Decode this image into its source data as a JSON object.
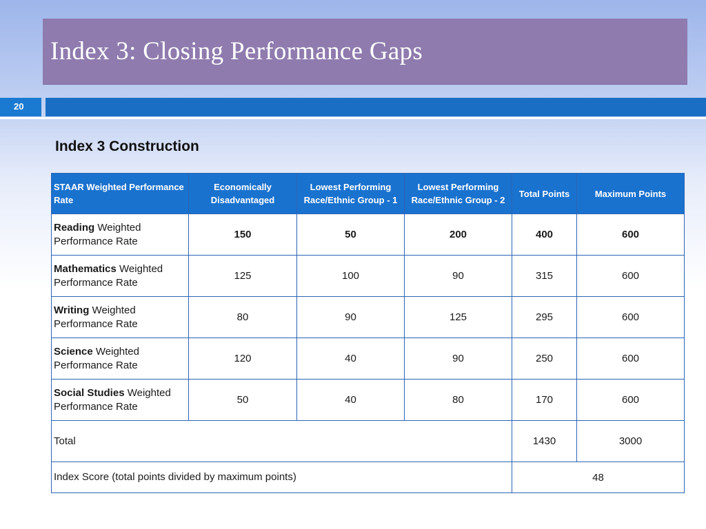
{
  "slide": {
    "title": "Index 3: Closing Performance Gaps",
    "number": "20",
    "subtitle": "Index 3 Construction"
  },
  "table": {
    "headers": {
      "col1": "STAAR Weighted Performance Rate",
      "col2": "Economically Disadvantaged",
      "col3": "Lowest Performing Race/Ethnic Group - 1",
      "col4": "Lowest Performing Race/Ethnic Group - 2",
      "col5": "Total Points",
      "col6": "Maximum Points"
    },
    "rows": [
      {
        "subject": "Reading",
        "suffix": " Weighted Performance Rate",
        "econ": "150",
        "group1": "50",
        "group2": "200",
        "total": "400",
        "max": "600"
      },
      {
        "subject": "Mathematics",
        "suffix": " Weighted Performance Rate",
        "econ": "125",
        "group1": "100",
        "group2": "90",
        "total": "315",
        "max": "600"
      },
      {
        "subject": "Writing",
        "suffix": " Weighted Performance Rate",
        "econ": "80",
        "group1": "90",
        "group2": "125",
        "total": "295",
        "max": "600"
      },
      {
        "subject": "Science",
        "suffix": " Weighted Performance Rate",
        "econ": "120",
        "group1": "40",
        "group2": "90",
        "total": "250",
        "max": "600"
      },
      {
        "subject": "Social Studies",
        "suffix": " Weighted Performance Rate",
        "econ": "50",
        "group1": "40",
        "group2": "80",
        "total": "170",
        "max": "600"
      }
    ],
    "total_row": {
      "label": "Total",
      "total": "1430",
      "max": "3000"
    },
    "index_row": {
      "label": "Index Score (total points divided by maximum points)",
      "score": "48"
    }
  }
}
